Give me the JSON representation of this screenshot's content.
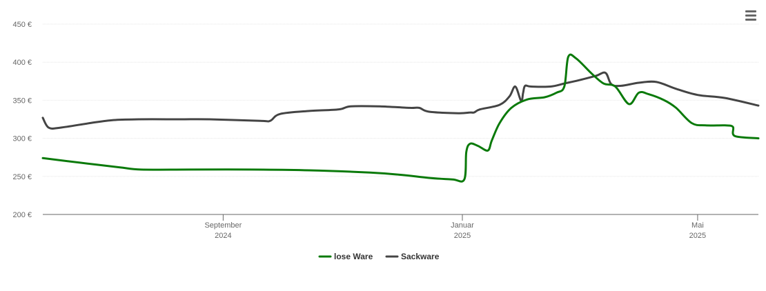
{
  "chart_data": {
    "type": "line",
    "title": "",
    "xlabel": "",
    "ylabel": "",
    "y_unit": "€",
    "ylim": [
      200,
      450
    ],
    "y_ticks": [
      200,
      250,
      300,
      350,
      400,
      450
    ],
    "y_tick_labels": [
      "200 €",
      "250 €",
      "300 €",
      "350 €",
      "400 €",
      "450 €"
    ],
    "x_range": [
      "2024-06-01",
      "2025-06-01"
    ],
    "x_ticks": [
      {
        "date": "2024-09-01",
        "line1": "September",
        "line2": "2024"
      },
      {
        "date": "2025-01-01",
        "line1": "Januar",
        "line2": "2025"
      },
      {
        "date": "2025-05-01",
        "line1": "Mai",
        "line2": "2025"
      }
    ],
    "grid": true,
    "legend_position": "bottom-center",
    "series": [
      {
        "name": "lose Ware",
        "color": "#0a7a0a",
        "points": [
          [
            "2024-06-01",
            274
          ],
          [
            "2024-06-20",
            268
          ],
          [
            "2024-07-10",
            262
          ],
          [
            "2024-07-21",
            259
          ],
          [
            "2024-08-15",
            259
          ],
          [
            "2024-09-15",
            259
          ],
          [
            "2024-10-15",
            258
          ],
          [
            "2024-11-15",
            255
          ],
          [
            "2024-12-01",
            252
          ],
          [
            "2024-12-15",
            248
          ],
          [
            "2024-12-27",
            246
          ],
          [
            "2025-01-02",
            246
          ],
          [
            "2025-01-03",
            282
          ],
          [
            "2025-01-05",
            293
          ],
          [
            "2025-01-09",
            290
          ],
          [
            "2025-01-14",
            284
          ],
          [
            "2025-01-16",
            297
          ],
          [
            "2025-01-20",
            320
          ],
          [
            "2025-01-26",
            340
          ],
          [
            "2025-02-03",
            351
          ],
          [
            "2025-02-12",
            354
          ],
          [
            "2025-02-18",
            360
          ],
          [
            "2025-02-22",
            368
          ],
          [
            "2025-02-24",
            407
          ],
          [
            "2025-02-28",
            405
          ],
          [
            "2025-03-08",
            385
          ],
          [
            "2025-03-14",
            372
          ],
          [
            "2025-03-20",
            368
          ],
          [
            "2025-03-27",
            345
          ],
          [
            "2025-04-01",
            360
          ],
          [
            "2025-04-06",
            358
          ],
          [
            "2025-04-14",
            350
          ],
          [
            "2025-04-20",
            340
          ],
          [
            "2025-04-28",
            320
          ],
          [
            "2025-05-05",
            317
          ],
          [
            "2025-05-15",
            317
          ],
          [
            "2025-05-19",
            315
          ],
          [
            "2025-05-20",
            303
          ],
          [
            "2025-06-01",
            300
          ]
        ]
      },
      {
        "name": "Sackware",
        "color": "#444444",
        "points": [
          [
            "2024-06-01",
            327
          ],
          [
            "2024-06-04",
            314
          ],
          [
            "2024-06-10",
            314
          ],
          [
            "2024-06-25",
            320
          ],
          [
            "2024-07-07",
            324
          ],
          [
            "2024-07-20",
            325
          ],
          [
            "2024-08-10",
            325
          ],
          [
            "2024-08-25",
            325
          ],
          [
            "2024-09-20",
            323
          ],
          [
            "2024-09-25",
            323
          ],
          [
            "2024-09-30",
            332
          ],
          [
            "2024-10-15",
            336
          ],
          [
            "2024-10-30",
            338
          ],
          [
            "2024-11-05",
            342
          ],
          [
            "2024-11-20",
            342
          ],
          [
            "2024-12-05",
            340
          ],
          [
            "2024-12-10",
            340
          ],
          [
            "2024-12-15",
            335
          ],
          [
            "2024-12-30",
            333
          ],
          [
            "2025-01-05",
            334
          ],
          [
            "2025-01-07",
            334
          ],
          [
            "2025-01-10",
            338
          ],
          [
            "2025-01-20",
            344
          ],
          [
            "2025-01-25",
            355
          ],
          [
            "2025-01-28",
            368
          ],
          [
            "2025-01-31",
            349
          ],
          [
            "2025-02-01",
            360
          ],
          [
            "2025-02-02",
            369
          ],
          [
            "2025-02-05",
            368
          ],
          [
            "2025-02-15",
            368
          ],
          [
            "2025-02-22",
            372
          ],
          [
            "2025-03-01",
            376
          ],
          [
            "2025-03-10",
            382
          ],
          [
            "2025-03-15",
            386
          ],
          [
            "2025-03-18",
            371
          ],
          [
            "2025-03-23",
            369
          ],
          [
            "2025-04-01",
            373
          ],
          [
            "2025-04-10",
            374
          ],
          [
            "2025-04-20",
            365
          ],
          [
            "2025-05-01",
            357
          ],
          [
            "2025-05-15",
            353
          ],
          [
            "2025-06-01",
            343
          ]
        ]
      }
    ]
  },
  "toolbar": {
    "menu_icon": "hamburger-menu-icon"
  }
}
